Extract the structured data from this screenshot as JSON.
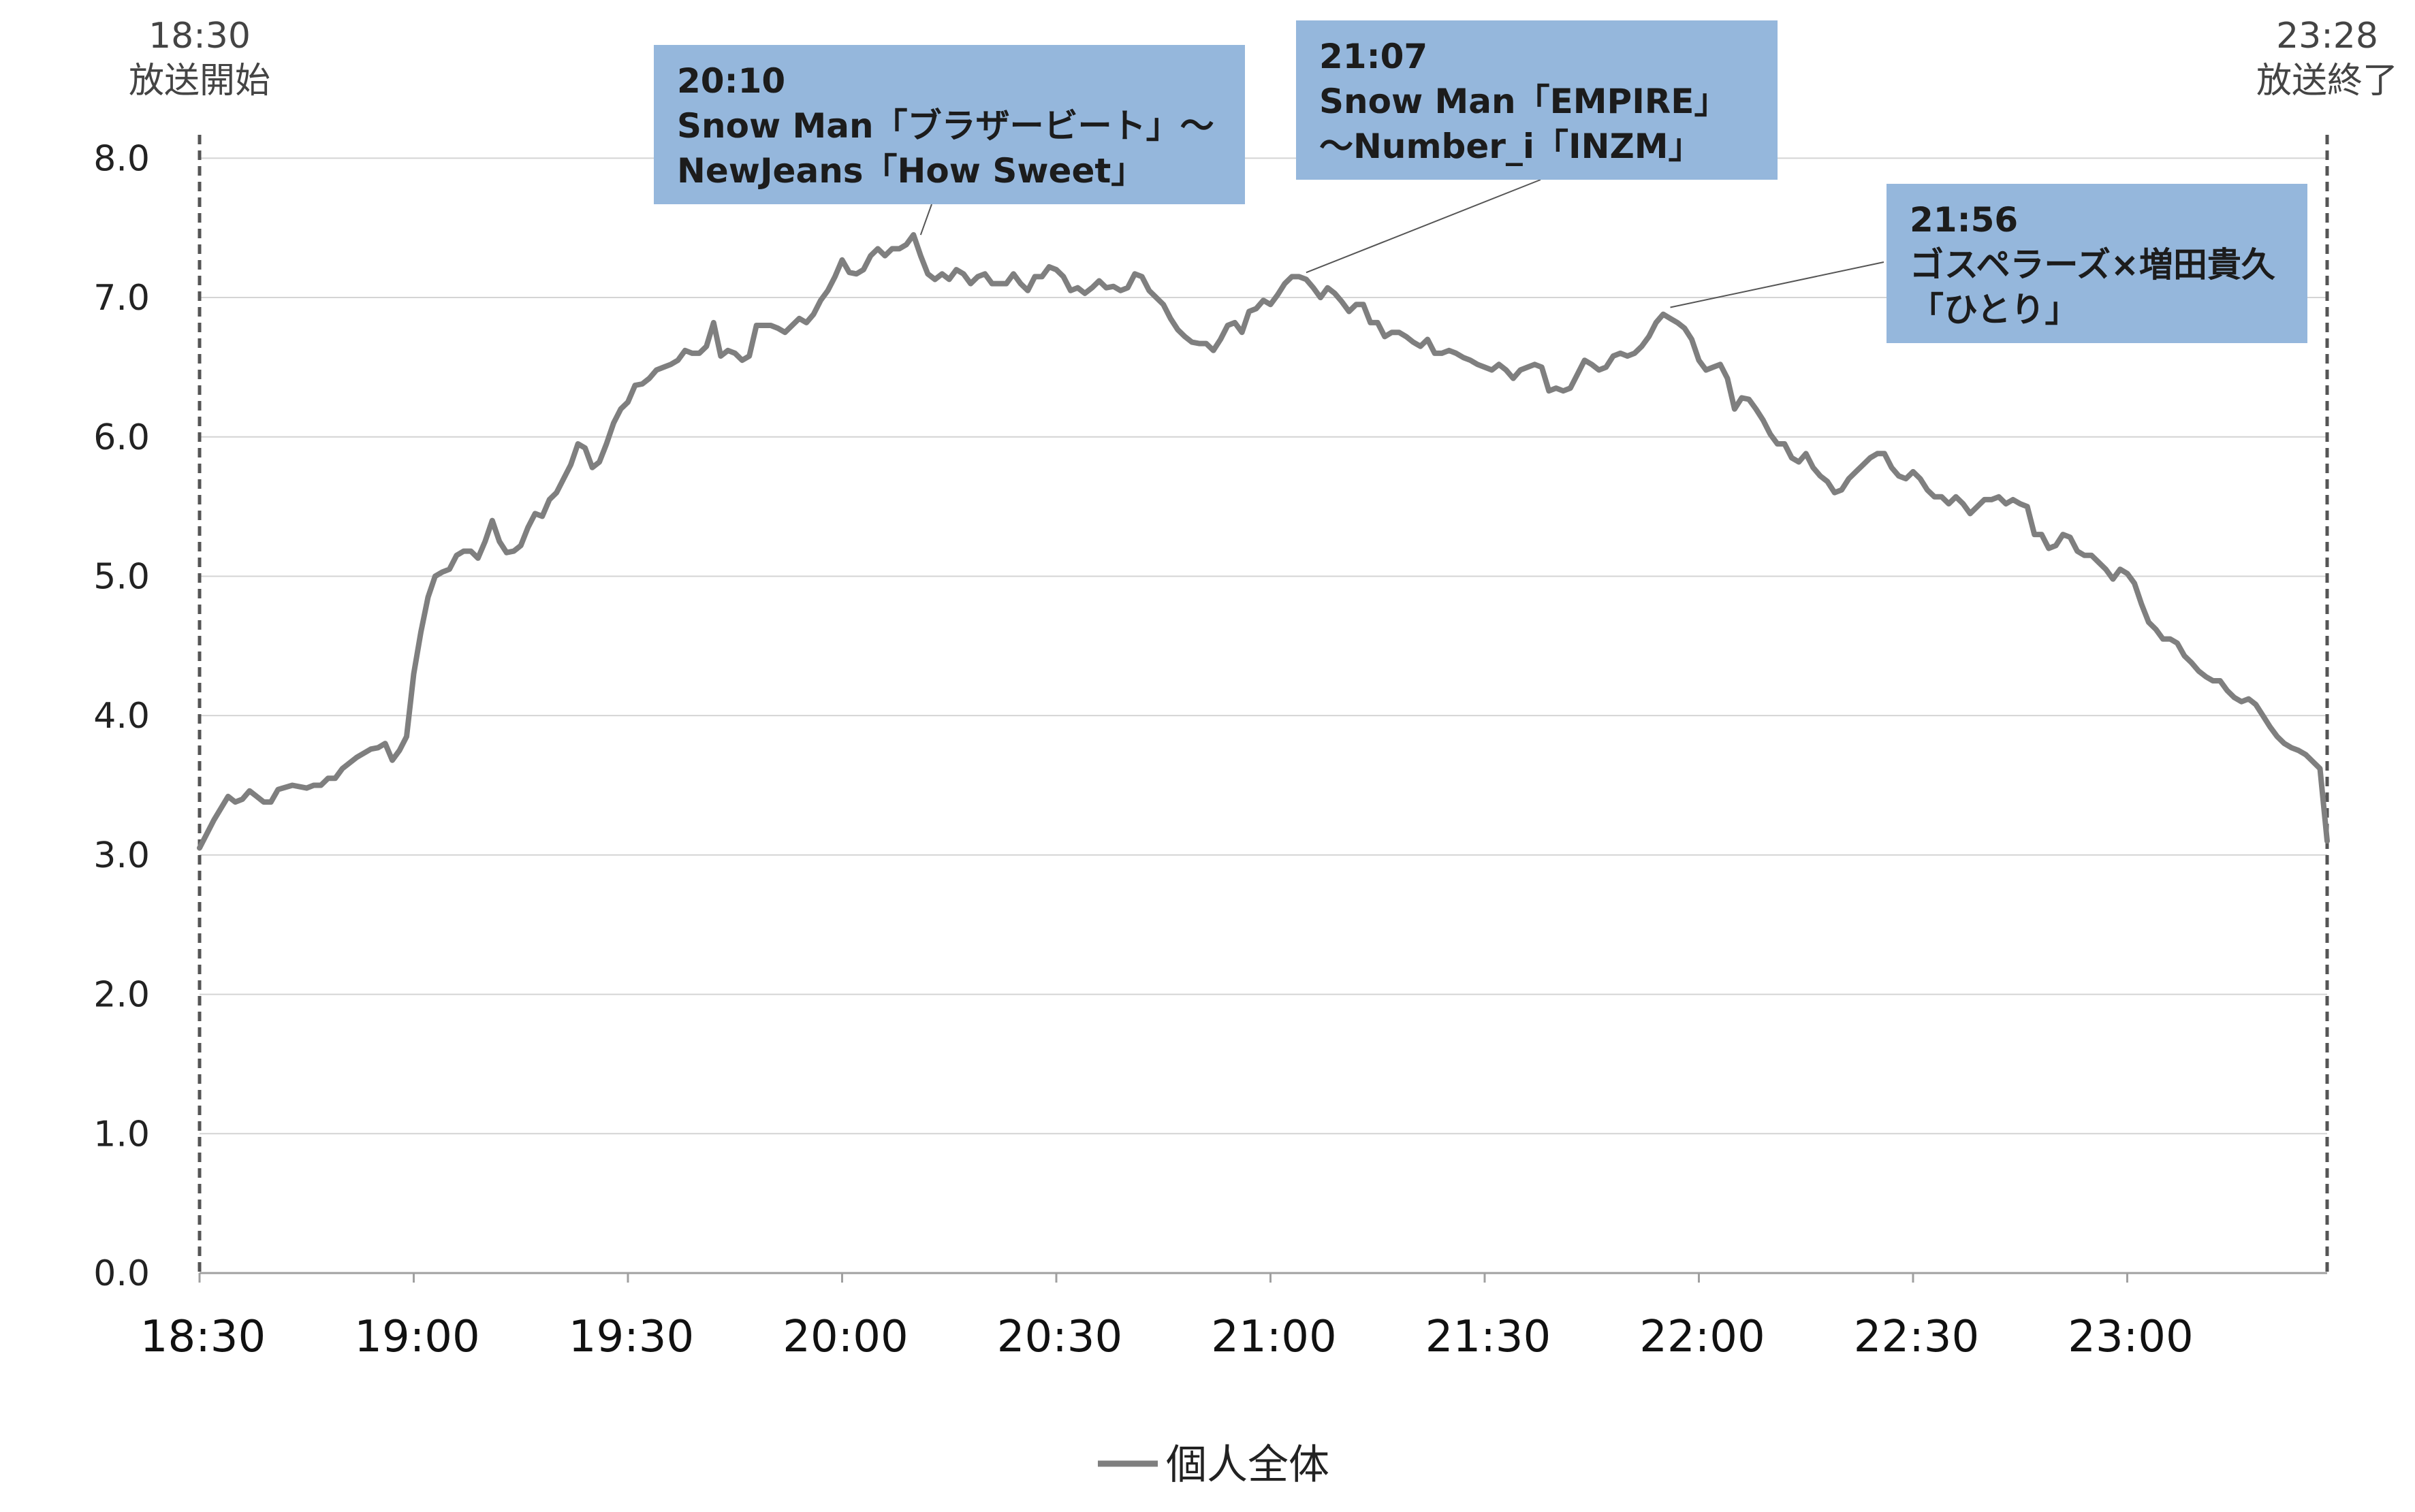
{
  "chart_data": {
    "type": "line",
    "title": "",
    "xlabel": "",
    "ylabel": "",
    "x_ticks": [
      "18:30",
      "19:00",
      "19:30",
      "20:00",
      "20:30",
      "21:00",
      "21:30",
      "22:00",
      "22:30",
      "23:00"
    ],
    "y_ticks": [
      "0.0",
      "1.0",
      "2.0",
      "3.0",
      "4.0",
      "5.0",
      "6.0",
      "7.0",
      "8.0"
    ],
    "xlim_minutes": [
      0,
      298
    ],
    "ylim": [
      0,
      8.5
    ],
    "grid": "horizontal",
    "legend": "bottom-center",
    "broadcast_start": {
      "time": "18:30",
      "label": "放送開始"
    },
    "broadcast_end": {
      "time": "23:28",
      "label": "放送終了"
    },
    "series": [
      {
        "name": "個人全体",
        "color": "#7f7f7f",
        "points": [
          [
            0,
            3.05
          ],
          [
            2,
            3.25
          ],
          [
            4,
            3.42
          ],
          [
            5,
            3.38
          ],
          [
            6,
            3.4
          ],
          [
            7,
            3.46
          ],
          [
            8,
            3.42
          ],
          [
            9,
            3.38
          ],
          [
            10,
            3.38
          ],
          [
            11,
            3.47
          ],
          [
            13,
            3.5
          ],
          [
            15,
            3.48
          ],
          [
            16,
            3.5
          ],
          [
            17,
            3.5
          ],
          [
            18,
            3.55
          ],
          [
            19,
            3.55
          ],
          [
            20,
            3.62
          ],
          [
            22,
            3.7
          ],
          [
            24,
            3.76
          ],
          [
            25,
            3.77
          ],
          [
            26,
            3.8
          ],
          [
            27,
            3.68
          ],
          [
            28,
            3.75
          ],
          [
            29,
            3.85
          ],
          [
            30,
            4.3
          ],
          [
            31,
            4.6
          ],
          [
            32,
            4.85
          ],
          [
            33,
            5.0
          ],
          [
            34,
            5.03
          ],
          [
            35,
            5.05
          ],
          [
            36,
            5.15
          ],
          [
            37,
            5.18
          ],
          [
            38,
            5.18
          ],
          [
            39,
            5.13
          ],
          [
            40,
            5.25
          ],
          [
            41,
            5.4
          ],
          [
            42,
            5.25
          ],
          [
            43,
            5.17
          ],
          [
            44,
            5.18
          ],
          [
            45,
            5.22
          ],
          [
            46,
            5.35
          ],
          [
            47,
            5.45
          ],
          [
            48,
            5.43
          ],
          [
            49,
            5.55
          ],
          [
            50,
            5.6
          ],
          [
            51,
            5.7
          ],
          [
            52,
            5.8
          ],
          [
            53,
            5.95
          ],
          [
            54,
            5.92
          ],
          [
            55,
            5.78
          ],
          [
            56,
            5.82
          ],
          [
            57,
            5.95
          ],
          [
            58,
            6.1
          ],
          [
            59,
            6.2
          ],
          [
            60,
            6.25
          ],
          [
            61,
            6.37
          ],
          [
            62,
            6.38
          ],
          [
            63,
            6.42
          ],
          [
            64,
            6.48
          ],
          [
            65,
            6.5
          ],
          [
            66,
            6.52
          ],
          [
            67,
            6.55
          ],
          [
            68,
            6.62
          ],
          [
            69,
            6.6
          ],
          [
            70,
            6.6
          ],
          [
            71,
            6.65
          ],
          [
            72,
            6.82
          ],
          [
            73,
            6.58
          ],
          [
            74,
            6.62
          ],
          [
            75,
            6.6
          ],
          [
            76,
            6.55
          ],
          [
            77,
            6.58
          ],
          [
            78,
            6.8
          ],
          [
            79,
            6.8
          ],
          [
            80,
            6.8
          ],
          [
            81,
            6.78
          ],
          [
            82,
            6.75
          ],
          [
            83,
            6.8
          ],
          [
            84,
            6.85
          ],
          [
            85,
            6.82
          ],
          [
            86,
            6.88
          ],
          [
            87,
            6.98
          ],
          [
            88,
            7.05
          ],
          [
            89,
            7.15
          ],
          [
            90,
            7.27
          ],
          [
            91,
            7.18
          ],
          [
            92,
            7.17
          ],
          [
            93,
            7.2
          ],
          [
            94,
            7.3
          ],
          [
            95,
            7.35
          ],
          [
            96,
            7.3
          ],
          [
            97,
            7.35
          ],
          [
            98,
            7.35
          ],
          [
            99,
            7.38
          ],
          [
            100,
            7.45
          ],
          [
            101,
            7.3
          ],
          [
            102,
            7.17
          ],
          [
            103,
            7.13
          ],
          [
            104,
            7.17
          ],
          [
            105,
            7.13
          ],
          [
            106,
            7.2
          ],
          [
            107,
            7.17
          ],
          [
            108,
            7.1
          ],
          [
            109,
            7.15
          ],
          [
            110,
            7.17
          ],
          [
            111,
            7.1
          ],
          [
            112,
            7.1
          ],
          [
            113,
            7.1
          ],
          [
            114,
            7.17
          ],
          [
            115,
            7.1
          ],
          [
            116,
            7.05
          ],
          [
            117,
            7.15
          ],
          [
            118,
            7.15
          ],
          [
            119,
            7.22
          ],
          [
            120,
            7.2
          ],
          [
            121,
            7.15
          ],
          [
            122,
            7.05
          ],
          [
            123,
            7.07
          ],
          [
            124,
            7.03
          ],
          [
            125,
            7.07
          ],
          [
            126,
            7.12
          ],
          [
            127,
            7.07
          ],
          [
            128,
            7.08
          ],
          [
            129,
            7.05
          ],
          [
            130,
            7.07
          ],
          [
            131,
            7.17
          ],
          [
            132,
            7.15
          ],
          [
            133,
            7.05
          ],
          [
            134,
            7.0
          ],
          [
            135,
            6.95
          ],
          [
            136,
            6.85
          ],
          [
            137,
            6.77
          ],
          [
            138,
            6.72
          ],
          [
            139,
            6.68
          ],
          [
            140,
            6.67
          ],
          [
            141,
            6.67
          ],
          [
            142,
            6.62
          ],
          [
            143,
            6.7
          ],
          [
            144,
            6.8
          ],
          [
            145,
            6.82
          ],
          [
            146,
            6.75
          ],
          [
            147,
            6.9
          ],
          [
            148,
            6.92
          ],
          [
            149,
            6.98
          ],
          [
            150,
            6.95
          ],
          [
            151,
            7.02
          ],
          [
            152,
            7.1
          ],
          [
            153,
            7.15
          ],
          [
            154,
            7.15
          ],
          [
            155,
            7.13
          ],
          [
            156,
            7.07
          ],
          [
            157,
            7.0
          ],
          [
            158,
            7.07
          ],
          [
            159,
            7.03
          ],
          [
            160,
            6.97
          ],
          [
            161,
            6.9
          ],
          [
            162,
            6.95
          ],
          [
            163,
            6.95
          ],
          [
            164,
            6.82
          ],
          [
            165,
            6.82
          ],
          [
            166,
            6.72
          ],
          [
            167,
            6.75
          ],
          [
            168,
            6.75
          ],
          [
            169,
            6.72
          ],
          [
            170,
            6.68
          ],
          [
            171,
            6.65
          ],
          [
            172,
            6.7
          ],
          [
            173,
            6.6
          ],
          [
            174,
            6.6
          ],
          [
            175,
            6.62
          ],
          [
            176,
            6.6
          ],
          [
            177,
            6.57
          ],
          [
            178,
            6.55
          ],
          [
            179,
            6.52
          ],
          [
            180,
            6.5
          ],
          [
            181,
            6.48
          ],
          [
            182,
            6.52
          ],
          [
            183,
            6.48
          ],
          [
            184,
            6.42
          ],
          [
            185,
            6.48
          ],
          [
            186,
            6.5
          ],
          [
            187,
            6.52
          ],
          [
            188,
            6.5
          ],
          [
            189,
            6.33
          ],
          [
            190,
            6.35
          ],
          [
            191,
            6.33
          ],
          [
            192,
            6.35
          ],
          [
            193,
            6.45
          ],
          [
            194,
            6.55
          ],
          [
            195,
            6.52
          ],
          [
            196,
            6.48
          ],
          [
            197,
            6.5
          ],
          [
            198,
            6.58
          ],
          [
            199,
            6.6
          ],
          [
            200,
            6.58
          ],
          [
            201,
            6.6
          ],
          [
            202,
            6.65
          ],
          [
            203,
            6.72
          ],
          [
            204,
            6.82
          ],
          [
            205,
            6.88
          ],
          [
            206,
            6.85
          ],
          [
            207,
            6.82
          ],
          [
            208,
            6.78
          ],
          [
            209,
            6.7
          ],
          [
            210,
            6.55
          ],
          [
            211,
            6.48
          ],
          [
            212,
            6.5
          ],
          [
            213,
            6.52
          ],
          [
            214,
            6.42
          ],
          [
            215,
            6.2
          ],
          [
            216,
            6.28
          ],
          [
            217,
            6.27
          ],
          [
            218,
            6.2
          ],
          [
            219,
            6.12
          ],
          [
            220,
            6.02
          ],
          [
            221,
            5.95
          ],
          [
            222,
            5.95
          ],
          [
            223,
            5.85
          ],
          [
            224,
            5.82
          ],
          [
            225,
            5.88
          ],
          [
            226,
            5.78
          ],
          [
            227,
            5.72
          ],
          [
            228,
            5.68
          ],
          [
            229,
            5.6
          ],
          [
            230,
            5.62
          ],
          [
            231,
            5.7
          ],
          [
            232,
            5.75
          ],
          [
            233,
            5.8
          ],
          [
            234,
            5.85
          ],
          [
            235,
            5.88
          ],
          [
            236,
            5.88
          ],
          [
            237,
            5.78
          ],
          [
            238,
            5.72
          ],
          [
            239,
            5.7
          ],
          [
            240,
            5.75
          ],
          [
            241,
            5.7
          ],
          [
            242,
            5.62
          ],
          [
            243,
            5.57
          ],
          [
            244,
            5.57
          ],
          [
            245,
            5.52
          ],
          [
            246,
            5.57
          ],
          [
            247,
            5.52
          ],
          [
            248,
            5.45
          ],
          [
            249,
            5.5
          ],
          [
            250,
            5.55
          ],
          [
            251,
            5.55
          ],
          [
            252,
            5.57
          ],
          [
            253,
            5.52
          ],
          [
            254,
            5.55
          ],
          [
            255,
            5.52
          ],
          [
            256,
            5.5
          ],
          [
            257,
            5.3
          ],
          [
            258,
            5.3
          ],
          [
            259,
            5.2
          ],
          [
            260,
            5.22
          ],
          [
            261,
            5.3
          ],
          [
            262,
            5.28
          ],
          [
            263,
            5.18
          ],
          [
            264,
            5.15
          ],
          [
            265,
            5.15
          ],
          [
            266,
            5.1
          ],
          [
            267,
            5.05
          ],
          [
            268,
            4.98
          ],
          [
            269,
            5.05
          ],
          [
            270,
            5.02
          ],
          [
            271,
            4.95
          ],
          [
            272,
            4.8
          ],
          [
            273,
            4.67
          ],
          [
            274,
            4.62
          ],
          [
            275,
            4.55
          ],
          [
            276,
            4.55
          ],
          [
            277,
            4.52
          ],
          [
            278,
            4.43
          ],
          [
            279,
            4.38
          ],
          [
            280,
            4.32
          ],
          [
            281,
            4.28
          ],
          [
            282,
            4.25
          ],
          [
            283,
            4.25
          ],
          [
            284,
            4.18
          ],
          [
            285,
            4.13
          ],
          [
            286,
            4.1
          ],
          [
            287,
            4.12
          ],
          [
            288,
            4.08
          ],
          [
            289,
            4.0
          ],
          [
            290,
            3.92
          ],
          [
            291,
            3.85
          ],
          [
            292,
            3.8
          ],
          [
            293,
            3.77
          ],
          [
            294,
            3.75
          ],
          [
            295,
            3.72
          ],
          [
            296,
            3.67
          ],
          [
            297,
            3.62
          ],
          [
            298,
            3.1
          ]
        ]
      }
    ],
    "annotations": [
      {
        "time": "20:10",
        "line1": "20:10",
        "line2": "Snow Man「ブラザービート」～",
        "line3": "NewJeans「How Sweet」",
        "minute": 101,
        "value": 7.42
      },
      {
        "time": "21:07",
        "line1": "21:07",
        "line2": "Snow Man「EMPIRE」",
        "line3": "～Number_i「INZM」",
        "minute": 155,
        "value": 7.15
      },
      {
        "time": "21:56",
        "line1": "21:56",
        "line2": "ゴスペラーズ×増田貴久",
        "line3": "「ひとり」",
        "minute": 206,
        "value": 6.9
      }
    ],
    "annotation_colors": {
      "box": "#95b7dc",
      "text": "#1c1c1c",
      "leader": "#555555"
    },
    "colors": {
      "grid": "#d4d4d4",
      "marker_line": "#555555",
      "axis": "#a0a0a0"
    }
  }
}
